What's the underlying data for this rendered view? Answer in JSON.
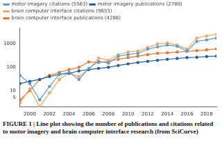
{
  "chart_data": {
    "type": "line",
    "caption": "FIGURE 1 | Line plot showing the number of publications and citations related to motor imagery and brain computer interface research (from SciCurve)",
    "x": [
      1999,
      2000,
      2001,
      2002,
      2003,
      2004,
      2005,
      2006,
      2007,
      2008,
      2009,
      2010,
      2011,
      2012,
      2013,
      2014,
      2015,
      2016,
      2017,
      2018,
      2019
    ],
    "series": [
      {
        "name": "motor imagery citations (5563)",
        "color": "#5b9bd5",
        "marker": "circle",
        "values": [
          45,
          20,
          4,
          15,
          50,
          60,
          30,
          90,
          180,
          150,
          300,
          350,
          400,
          600,
          750,
          900,
          800,
          500,
          1300,
          1500,
          1800
        ]
      },
      {
        "name": "motor imagery publications (2780)",
        "color": "#1f5fa8",
        "marker": "circle",
        "values": [
          20,
          25,
          30,
          40,
          50,
          55,
          70,
          80,
          90,
          100,
          120,
          140,
          160,
          180,
          200,
          220,
          240,
          260,
          270,
          290,
          300
        ]
      },
      {
        "name": "brain computer interface citations (9653)",
        "color": "#f5a65b",
        "marker": "circle",
        "values": [
          3,
          12,
          2,
          8,
          30,
          60,
          40,
          80,
          250,
          200,
          350,
          450,
          500,
          700,
          1000,
          1100,
          900,
          600,
          1800,
          2200,
          2600
        ]
      },
      {
        "name": "brain computer interface publications (4288)",
        "color": "#e8762c",
        "marker": "circle",
        "values": [
          4,
          10,
          30,
          45,
          60,
          80,
          100,
          170,
          160,
          180,
          220,
          260,
          300,
          350,
          400,
          420,
          450,
          480,
          520,
          560,
          620
        ]
      }
    ],
    "xlim": [
      1999,
      2019
    ],
    "xticks": [
      2000,
      2002,
      2004,
      2006,
      2008,
      2010,
      2012,
      2014,
      2016,
      2018
    ],
    "ylim": [
      2,
      5000
    ],
    "yticks": [
      5,
      10,
      100,
      1000
    ],
    "log": "y",
    "grid": false,
    "legend": "top-left"
  }
}
